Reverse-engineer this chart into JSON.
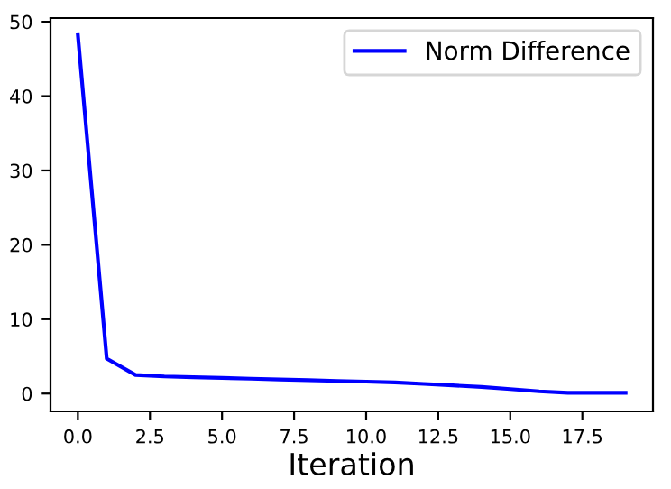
{
  "chart_data": {
    "type": "line",
    "xlabel": "Iteration",
    "x": [
      0,
      1,
      2,
      3,
      4,
      5,
      6,
      7,
      8,
      9,
      10,
      11,
      12,
      13,
      14,
      15,
      16,
      17,
      18,
      19
    ],
    "series": [
      {
        "name": "Norm Difference",
        "color": "#0000ff",
        "values": [
          48.2,
          4.7,
          2.5,
          2.3,
          2.2,
          2.1,
          2.0,
          1.9,
          1.8,
          1.7,
          1.6,
          1.5,
          1.3,
          1.1,
          0.9,
          0.6,
          0.3,
          0.1,
          0.1,
          0.1
        ]
      }
    ],
    "xlim": [
      -0.95,
      19.95
    ],
    "xticks": [
      {
        "value": 0,
        "label": "0.0"
      },
      {
        "value": 2.5,
        "label": "2.5"
      },
      {
        "value": 5,
        "label": "5.0"
      },
      {
        "value": 7.5,
        "label": "7.5"
      },
      {
        "value": 10,
        "label": "10.0"
      },
      {
        "value": 12.5,
        "label": "12.5"
      },
      {
        "value": 15,
        "label": "15.0"
      },
      {
        "value": 17.5,
        "label": "17.5"
      }
    ],
    "ylim": [
      -2.4,
      50.5
    ],
    "yticks": [
      0,
      10,
      20,
      30,
      40,
      50
    ],
    "legend": "top right",
    "grid": false
  }
}
